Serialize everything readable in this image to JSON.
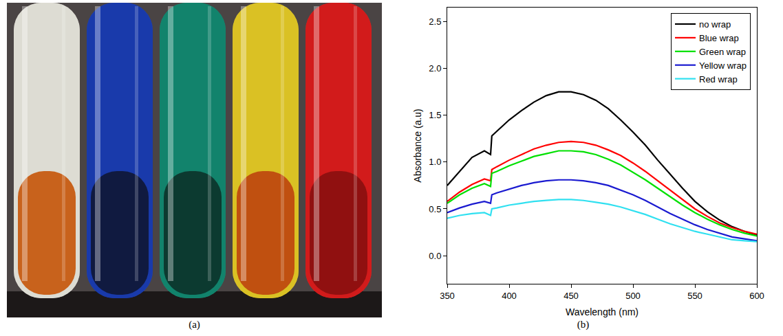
{
  "photo": {
    "caption": "(a)"
  },
  "chart_data": {
    "type": "line",
    "caption": "(b)",
    "x_label": "Wavelength (nm)",
    "y_label": "Absorbance (a.u)",
    "x": [
      350,
      360,
      370,
      380,
      385,
      386,
      390,
      400,
      410,
      420,
      430,
      440,
      450,
      460,
      470,
      480,
      490,
      500,
      510,
      520,
      530,
      540,
      550,
      560,
      570,
      580,
      590,
      600
    ],
    "series": [
      {
        "name": "no wrap",
        "color": "#000000",
        "values": [
          0.75,
          0.9,
          1.05,
          1.12,
          1.08,
          1.28,
          1.33,
          1.45,
          1.55,
          1.64,
          1.71,
          1.75,
          1.75,
          1.72,
          1.66,
          1.57,
          1.45,
          1.32,
          1.18,
          1.02,
          0.87,
          0.72,
          0.58,
          0.47,
          0.38,
          0.31,
          0.26,
          0.22
        ]
      },
      {
        "name": "Blue wrap",
        "color": "#ff0000",
        "values": [
          0.58,
          0.68,
          0.76,
          0.82,
          0.8,
          0.92,
          0.95,
          1.02,
          1.08,
          1.14,
          1.18,
          1.21,
          1.22,
          1.21,
          1.18,
          1.13,
          1.07,
          0.99,
          0.9,
          0.8,
          0.7,
          0.6,
          0.5,
          0.42,
          0.35,
          0.3,
          0.26,
          0.23
        ]
      },
      {
        "name": "Green wrap",
        "color": "#00e000",
        "values": [
          0.56,
          0.65,
          0.72,
          0.77,
          0.74,
          0.88,
          0.9,
          0.96,
          1.01,
          1.06,
          1.09,
          1.12,
          1.12,
          1.11,
          1.08,
          1.03,
          0.97,
          0.89,
          0.81,
          0.72,
          0.63,
          0.54,
          0.46,
          0.39,
          0.33,
          0.28,
          0.24,
          0.21
        ]
      },
      {
        "name": "Yellow wrap",
        "color": "#1a1ad0",
        "values": [
          0.46,
          0.51,
          0.55,
          0.58,
          0.56,
          0.65,
          0.67,
          0.71,
          0.75,
          0.78,
          0.8,
          0.81,
          0.81,
          0.8,
          0.78,
          0.75,
          0.7,
          0.65,
          0.59,
          0.52,
          0.45,
          0.39,
          0.33,
          0.28,
          0.24,
          0.2,
          0.18,
          0.16
        ]
      },
      {
        "name": "Red wrap",
        "color": "#30e0f0",
        "values": [
          0.4,
          0.43,
          0.45,
          0.46,
          0.43,
          0.5,
          0.51,
          0.54,
          0.56,
          0.58,
          0.59,
          0.6,
          0.6,
          0.59,
          0.57,
          0.55,
          0.52,
          0.48,
          0.44,
          0.39,
          0.34,
          0.3,
          0.26,
          0.23,
          0.2,
          0.17,
          0.16,
          0.15
        ]
      }
    ],
    "xlim": [
      350,
      600
    ],
    "xticks": [
      350,
      400,
      450,
      500,
      550,
      600
    ],
    "ylim": [
      -0.3,
      2.65
    ],
    "yticks": [
      {
        "value": 0,
        "label": "0.0"
      },
      0.5,
      {
        "value": 1,
        "label": "1.0"
      },
      1.5,
      {
        "value": 2,
        "label": "2.0"
      },
      2.5
    ],
    "grid": false,
    "legend": "top-right"
  }
}
